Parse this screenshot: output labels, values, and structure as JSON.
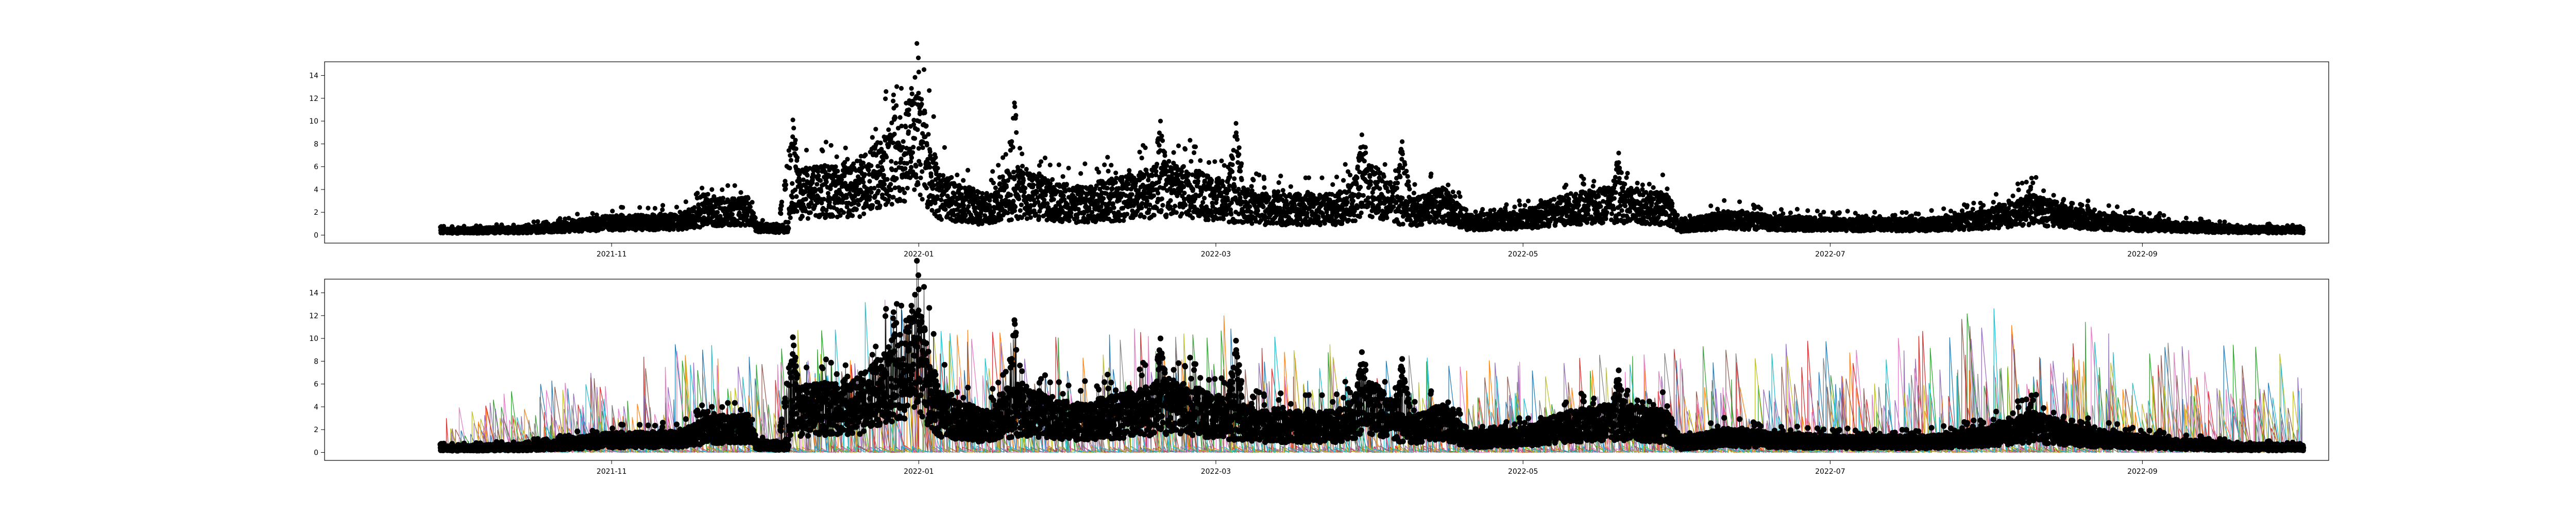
{
  "chart_data": [
    {
      "type": "scatter",
      "title": "",
      "xlabel": "",
      "ylabel": "",
      "xlim": [
        "2021-09-05",
        "2022-10-08"
      ],
      "ylim": [
        -0.7,
        15.2
      ],
      "yticks": [
        0,
        2,
        4,
        6,
        8,
        10,
        12,
        14
      ],
      "xticks": [
        "2021-11",
        "2022-01",
        "2022-03",
        "2022-05",
        "2022-07",
        "2022-09"
      ],
      "grid": false,
      "legend": "none",
      "series": [
        {
          "marker_color": "#000000",
          "x_range": [
            "2021-09-28",
            "2022-10-03"
          ],
          "points_per_day": 24,
          "daily_level": [
            [
              "2021-09-28",
              0.4
            ],
            [
              "2021-10-15",
              0.5
            ],
            [
              "2021-10-25",
              0.9
            ],
            [
              "2021-11-01",
              1.2
            ],
            [
              "2021-11-15",
              1.3
            ],
            [
              "2021-11-20",
              2.2
            ],
            [
              "2021-11-28",
              2.4
            ],
            [
              "2021-11-30",
              0.7
            ],
            [
              "2021-12-06",
              0.6
            ],
            [
              "2021-12-07",
              4.0
            ],
            [
              "2021-12-20",
              4.5
            ],
            [
              "2021-12-25",
              6.0
            ],
            [
              "2021-12-28",
              7.5
            ],
            [
              "2022-01-01",
              9.0
            ],
            [
              "2022-01-05",
              4.0
            ],
            [
              "2022-01-10",
              3.0
            ],
            [
              "2022-01-15",
              2.5
            ],
            [
              "2022-01-20",
              4.0
            ],
            [
              "2022-02-01",
              3.0
            ],
            [
              "2022-02-10",
              3.5
            ],
            [
              "2022-02-20",
              4.5
            ],
            [
              "2022-03-01",
              3.5
            ],
            [
              "2022-03-10",
              2.5
            ],
            [
              "2022-03-25",
              2.5
            ],
            [
              "2022-04-01",
              4.5
            ],
            [
              "2022-04-08",
              2.0
            ],
            [
              "2022-04-15",
              3.0
            ],
            [
              "2022-04-20",
              1.2
            ],
            [
              "2022-05-01",
              1.5
            ],
            [
              "2022-05-10",
              2.5
            ],
            [
              "2022-05-20",
              3.0
            ],
            [
              "2022-05-30",
              2.5
            ],
            [
              "2022-06-01",
              0.8
            ],
            [
              "2022-06-10",
              1.5
            ],
            [
              "2022-06-20",
              1.2
            ],
            [
              "2022-07-01",
              1.0
            ],
            [
              "2022-07-20",
              1.0
            ],
            [
              "2022-08-01",
              1.5
            ],
            [
              "2022-08-10",
              2.5
            ],
            [
              "2022-08-20",
              1.5
            ],
            [
              "2022-09-01",
              1.0
            ],
            [
              "2022-09-20",
              0.5
            ],
            [
              "2022-10-03",
              0.5
            ]
          ],
          "peaks": [
            [
              "2021-12-07",
              10.1
            ],
            [
              "2021-12-27",
              12.3
            ],
            [
              "2022-01-01",
              14.3
            ],
            [
              "2022-01-20",
              11.6
            ],
            [
              "2022-02-18",
              10.0
            ],
            [
              "2022-03-05",
              9.8
            ],
            [
              "2022-03-30",
              8.8
            ],
            [
              "2022-04-07",
              8.2
            ],
            [
              "2022-05-20",
              7.2
            ],
            [
              "2022-08-10",
              5.0
            ]
          ]
        }
      ]
    },
    {
      "type": "line",
      "title": "",
      "xlabel": "",
      "ylabel": "",
      "xlim": [
        "2021-09-05",
        "2022-10-08"
      ],
      "ylim": [
        -0.7,
        15.2
      ],
      "yticks": [
        0,
        2,
        4,
        6,
        8,
        10,
        12,
        14
      ],
      "xticks": [
        "2021-11",
        "2022-01",
        "2022-03",
        "2022-05",
        "2022-07",
        "2022-09"
      ],
      "grid": false,
      "legend": "none",
      "series_colors": [
        "#1f77b4",
        "#ff7f0e",
        "#2ca02c",
        "#d62728",
        "#9467bd",
        "#8c564b",
        "#e377c2",
        "#7f7f7f",
        "#bcbd22",
        "#17becf"
      ],
      "spike_series_max": [
        [
          "2021-09-28",
          3.5
        ],
        [
          "2021-10-15",
          6.0
        ],
        [
          "2021-11-01",
          8.0
        ],
        [
          "2021-11-15",
          10.0
        ],
        [
          "2021-12-01",
          9.0
        ],
        [
          "2021-12-20",
          14.3
        ],
        [
          "2022-01-05",
          11.0
        ],
        [
          "2022-02-01",
          10.0
        ],
        [
          "2022-03-01",
          13.0
        ],
        [
          "2022-04-01",
          9.0
        ],
        [
          "2022-05-01",
          8.0
        ],
        [
          "2022-06-01",
          9.5
        ],
        [
          "2022-07-01",
          10.0
        ],
        [
          "2022-07-28",
          13.0
        ],
        [
          "2022-08-15",
          12.5
        ],
        [
          "2022-09-01",
          10.0
        ],
        [
          "2022-10-03",
          9.0
        ]
      ],
      "overlay_series": {
        "marker_color": "#000000",
        "same_as_scatter_above": true
      }
    }
  ]
}
